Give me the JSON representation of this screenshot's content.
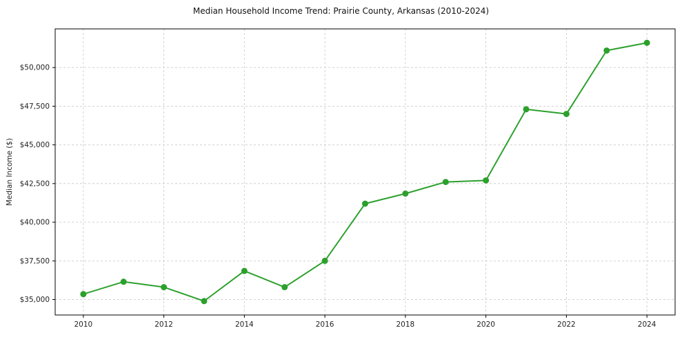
{
  "chart_data": {
    "type": "line",
    "title": "Median Household Income Trend: Prairie County, Arkansas (2010-2024)",
    "xlabel": "",
    "ylabel": "Median Income ($)",
    "series_name": "Median Household Income",
    "x": [
      2010,
      2011,
      2012,
      2013,
      2014,
      2015,
      2016,
      2017,
      2018,
      2019,
      2020,
      2021,
      2022,
      2023,
      2024
    ],
    "values": [
      35350,
      36150,
      35800,
      34900,
      36850,
      35800,
      37500,
      41200,
      41850,
      42600,
      42700,
      47300,
      47000,
      51100,
      51600
    ],
    "xlim": [
      2009.3,
      2024.7
    ],
    "ylim": [
      34000,
      52500
    ],
    "x_ticks": [
      2010,
      2012,
      2014,
      2016,
      2018,
      2020,
      2022,
      2024
    ],
    "y_ticks": [
      35000,
      37500,
      40000,
      42500,
      45000,
      47500,
      50000
    ],
    "y_tick_labels": [
      "$35,000",
      "$37,500",
      "$40,000",
      "$42,500",
      "$45,000",
      "$47,500",
      "$50,000"
    ],
    "grid": true,
    "grid_style": "dashed",
    "legend_position": "none",
    "line_color": "#2ca02c",
    "marker_color": "#2ca02c",
    "marker_shape": "circle"
  }
}
